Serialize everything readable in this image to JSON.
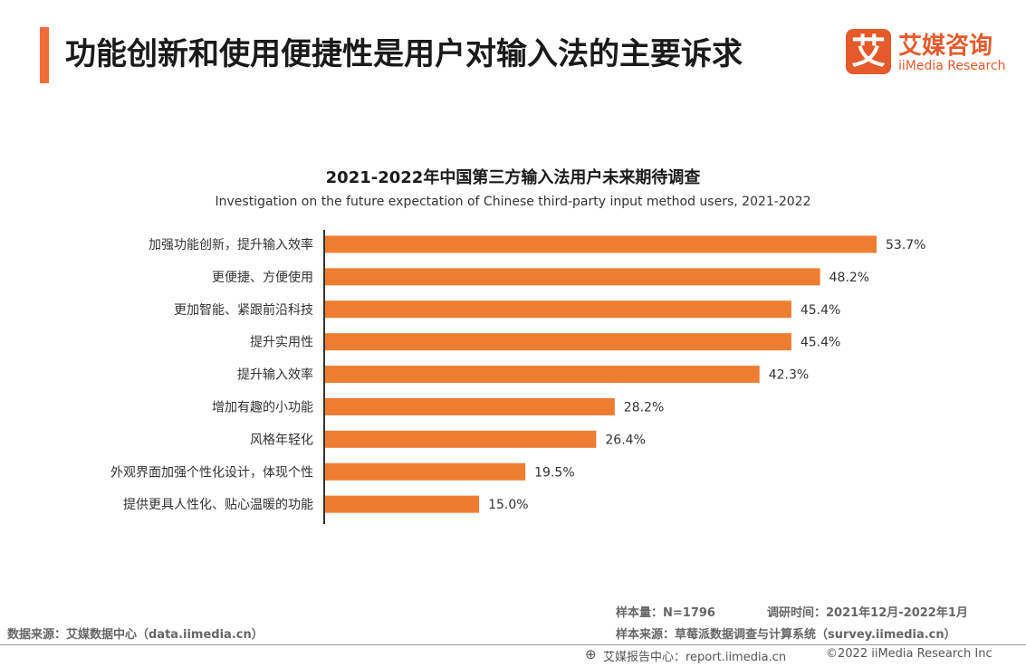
{
  "header": {
    "title": "功能创新和使用便捷性是用户对输入法的主要诉求",
    "accent_color": "#f26b3a"
  },
  "logo": {
    "mark": "艾",
    "name_cn": "艾媒咨询",
    "name_en": "iiMedia Research",
    "color": "#e55a2b"
  },
  "chart_data": {
    "type": "bar",
    "orientation": "horizontal",
    "title": "2021-2022年中国第三方输入法用户未来期待调查",
    "subtitle": "Investigation on the future expectation of Chinese third-party input method users, 2021-2022",
    "categories": [
      "加强功能创新，提升输入效率",
      "更便捷、方便使用",
      "更加智能、紧跟前沿科技",
      "提升实用性",
      "提升输入效率",
      "增加有趣的小功能",
      "风格年轻化",
      "外观界面加强个性化设计，体现个性",
      "提供更具人性化、贴心温暖的功能"
    ],
    "values": [
      53.7,
      48.2,
      45.4,
      45.4,
      42.3,
      28.2,
      26.4,
      19.5,
      15.0
    ],
    "value_labels": [
      "53.7%",
      "48.2%",
      "45.4%",
      "45.4%",
      "42.3%",
      "28.2%",
      "26.4%",
      "19.5%",
      "15.0%"
    ],
    "unit": "%",
    "xlim": [
      0,
      53.7
    ],
    "bar_color": "#ef7d31",
    "legend": "none",
    "grid": false
  },
  "footer": {
    "sample_size": "样本量：N=1796",
    "survey_time": "调研时间：2021年12月-2022年1月",
    "sample_source": "样本来源：草莓派数据调查与计算系统（survey.iimedia.cn）",
    "data_source": "数据来源：艾媒数据中心（data.iimedia.cn）",
    "globe_icon": "⊕",
    "report_center": "艾媒报告中心：report.iimedia.cn",
    "copyright": "©2022  iiMedia Research Inc"
  }
}
